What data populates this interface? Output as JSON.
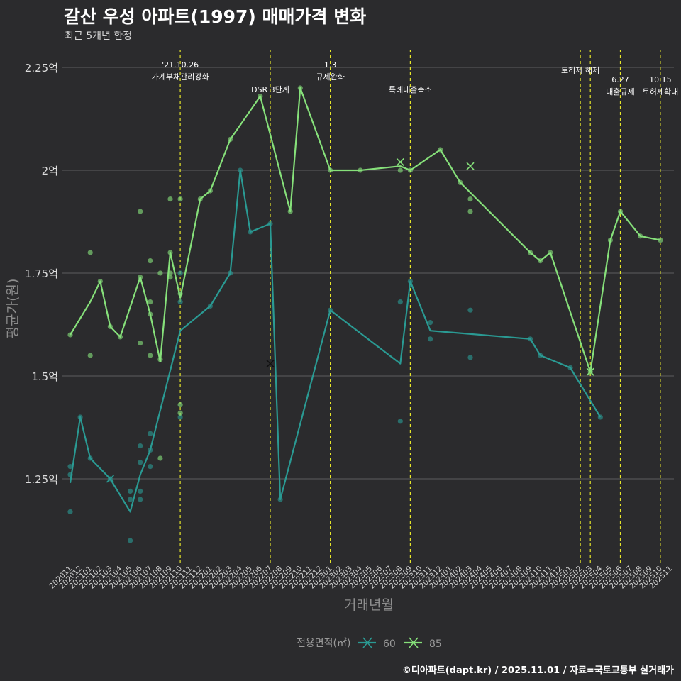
{
  "chart_data": {
    "type": "line",
    "title": "갈산 우성 아파트(1997) 매매가격 변화",
    "subtitle": "최근 5개년 한정",
    "xlabel": "거래년월",
    "ylabel": "평균가(원)",
    "caption": "©디아파트(dapt.kr) / 2025.11.01 / 자료=국토교통부 실거래가",
    "ylim": [
      1.03,
      2.3
    ],
    "y_ticks": [
      {
        "v": 1.25,
        "label": "1.25억"
      },
      {
        "v": 1.5,
        "label": "1.5억"
      },
      {
        "v": 1.75,
        "label": "1.75억"
      },
      {
        "v": 2.0,
        "label": "2억"
      },
      {
        "v": 2.25,
        "label": "2.25억"
      }
    ],
    "x_ticks": [
      "202011",
      "202012",
      "202101",
      "202102",
      "202103",
      "202104",
      "202105",
      "202106",
      "202107",
      "202108",
      "202109",
      "202110",
      "202111",
      "202112",
      "202201",
      "202202",
      "202203",
      "202204",
      "202205",
      "202206",
      "202207",
      "202208",
      "202209",
      "202210",
      "202211",
      "202212",
      "202301",
      "202302",
      "202303",
      "202304",
      "202305",
      "202306",
      "202307",
      "202308",
      "202309",
      "202310",
      "202311",
      "202312",
      "202401",
      "202402",
      "202403",
      "202404",
      "202405",
      "202406",
      "202407",
      "202408",
      "202409",
      "202410",
      "202411",
      "202412",
      "202501",
      "202502",
      "202503",
      "202504",
      "202505",
      "202506",
      "202507",
      "202508",
      "202509",
      "202510",
      "202511"
    ],
    "legend": {
      "title": "전용면적(㎡)",
      "position": "bottom"
    },
    "annotations": [
      {
        "x": 11.0,
        "lines": [
          "'21.10.26",
          "가계부채관리강화"
        ],
        "row": 0
      },
      {
        "x": 20.0,
        "lines": [
          "DSR 3단계"
        ],
        "row": 2
      },
      {
        "x": 26.0,
        "lines": [
          "1.3",
          "규제완화"
        ],
        "row": 0
      },
      {
        "x": 34.0,
        "lines": [
          "특례대출축소"
        ],
        "row": 2
      },
      {
        "x": 51.0,
        "lines": [
          "토허제 해제"
        ],
        "row": 1
      },
      {
        "x": 52.0,
        "lines": [],
        "row": 0
      },
      {
        "x": 55.0,
        "lines": [
          "6.27",
          "대출규제"
        ],
        "row": 3
      },
      {
        "x": 59.0,
        "lines": [
          "10.15",
          "토허제확대"
        ],
        "row": 3
      }
    ],
    "series": [
      {
        "name": "60",
        "color": "#2a9a93",
        "line": [
          [
            0,
            1.24
          ],
          [
            1,
            1.4
          ],
          [
            2,
            1.3
          ],
          [
            4,
            1.25
          ],
          [
            6,
            1.17
          ],
          [
            7,
            1.26
          ],
          [
            8,
            1.32
          ],
          [
            11,
            1.61
          ],
          [
            14,
            1.67
          ],
          [
            16,
            1.75
          ],
          [
            17,
            2.0
          ],
          [
            18,
            1.85
          ],
          [
            20,
            1.87
          ],
          [
            21,
            1.2
          ],
          [
            26,
            1.66
          ],
          [
            33,
            1.53
          ],
          [
            34,
            1.73
          ],
          [
            36,
            1.61
          ],
          [
            46,
            1.59
          ],
          [
            47,
            1.55
          ],
          [
            50,
            1.52
          ],
          [
            53,
            1.4
          ]
        ],
        "points": [
          [
            0,
            1.28
          ],
          [
            0,
            1.26
          ],
          [
            0,
            1.17
          ],
          [
            1,
            1.4
          ],
          [
            2,
            1.3
          ],
          [
            4,
            1.25
          ],
          [
            6,
            1.22
          ],
          [
            6,
            1.2
          ],
          [
            6,
            1.1
          ],
          [
            7,
            1.22
          ],
          [
            7,
            1.2
          ],
          [
            7,
            1.29
          ],
          [
            7,
            1.33
          ],
          [
            8,
            1.28
          ],
          [
            8,
            1.32
          ],
          [
            8,
            1.36
          ],
          [
            11,
            1.68
          ],
          [
            11,
            1.75
          ],
          [
            11,
            1.4
          ],
          [
            14,
            1.67
          ],
          [
            16,
            1.75
          ],
          [
            17,
            2.0
          ],
          [
            18,
            1.85
          ],
          [
            20,
            1.87
          ],
          [
            21,
            1.2
          ],
          [
            26,
            1.66
          ],
          [
            33,
            1.68
          ],
          [
            33,
            1.39
          ],
          [
            34,
            1.73
          ],
          [
            36,
            1.63
          ],
          [
            36,
            1.59
          ],
          [
            40,
            1.545
          ],
          [
            40,
            1.66
          ],
          [
            46,
            1.59
          ],
          [
            47,
            1.55
          ],
          [
            50,
            1.52
          ],
          [
            53,
            1.4
          ]
        ],
        "crosses": [
          [
            4,
            1.25
          ],
          [
            20,
            1.53
          ]
        ]
      },
      {
        "name": "85",
        "color": "#86e07a",
        "line": [
          [
            0,
            1.6
          ],
          [
            2,
            1.68
          ],
          [
            3,
            1.73
          ],
          [
            4,
            1.62
          ],
          [
            5,
            1.595
          ],
          [
            7,
            1.74
          ],
          [
            8,
            1.65
          ],
          [
            9,
            1.535
          ],
          [
            10,
            1.8
          ],
          [
            11,
            1.69
          ],
          [
            13,
            1.93
          ],
          [
            14,
            1.95
          ],
          [
            16,
            2.075
          ],
          [
            19,
            2.18
          ],
          [
            22,
            1.9
          ],
          [
            23,
            2.2
          ],
          [
            26,
            2.0
          ],
          [
            29,
            2.0
          ],
          [
            33,
            2.01
          ],
          [
            34,
            2.0
          ],
          [
            37,
            2.05
          ],
          [
            39,
            1.97
          ],
          [
            46,
            1.8
          ],
          [
            47,
            1.78
          ],
          [
            48,
            1.8
          ],
          [
            52,
            1.51
          ],
          [
            54,
            1.83
          ],
          [
            55,
            1.9
          ],
          [
            57,
            1.84
          ],
          [
            59,
            1.83
          ]
        ],
        "points": [
          [
            0,
            1.6
          ],
          [
            2,
            1.8
          ],
          [
            2,
            1.55
          ],
          [
            3,
            1.73
          ],
          [
            4,
            1.62
          ],
          [
            5,
            1.595
          ],
          [
            7,
            1.9
          ],
          [
            7,
            1.58
          ],
          [
            7,
            1.74
          ],
          [
            8,
            1.78
          ],
          [
            8,
            1.68
          ],
          [
            8,
            1.65
          ],
          [
            8,
            1.55
          ],
          [
            9,
            1.75
          ],
          [
            9,
            1.3
          ],
          [
            9,
            1.54
          ],
          [
            10,
            1.93
          ],
          [
            10,
            1.8
          ],
          [
            10,
            1.75
          ],
          [
            10,
            1.74
          ],
          [
            11,
            1.93
          ],
          [
            11,
            1.7
          ],
          [
            11,
            1.43
          ],
          [
            11,
            1.41
          ],
          [
            13,
            1.93
          ],
          [
            14,
            1.95
          ],
          [
            16,
            2.075
          ],
          [
            19,
            2.18
          ],
          [
            22,
            1.9
          ],
          [
            23,
            2.2
          ],
          [
            26,
            2.0
          ],
          [
            29,
            2.0
          ],
          [
            33,
            2.0
          ],
          [
            34,
            2.0
          ],
          [
            37,
            2.05
          ],
          [
            39,
            1.97
          ],
          [
            40,
            1.93
          ],
          [
            40,
            1.9
          ],
          [
            46,
            1.8
          ],
          [
            47,
            1.78
          ],
          [
            48,
            1.8
          ],
          [
            52,
            1.51
          ],
          [
            54,
            1.83
          ],
          [
            55,
            1.9
          ],
          [
            57,
            1.84
          ],
          [
            59,
            1.83
          ]
        ],
        "crosses": [
          [
            33,
            2.02
          ],
          [
            40,
            2.01
          ],
          [
            52,
            1.51
          ]
        ]
      }
    ]
  }
}
